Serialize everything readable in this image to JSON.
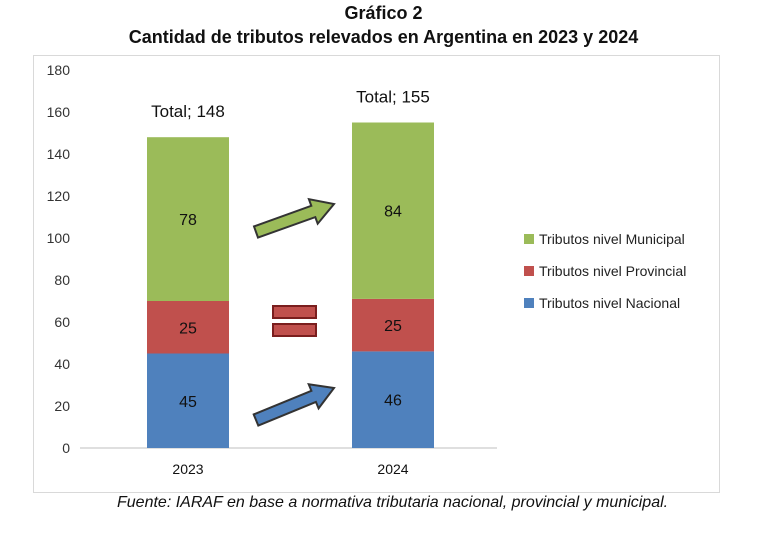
{
  "header": {
    "title": "Gráfico 2",
    "subtitle": "Cantidad de tributos relevados en Argentina en 2023 y 2024"
  },
  "chart_data": {
    "type": "bar",
    "stacked": true,
    "categories": [
      "2023",
      "2024"
    ],
    "series": [
      {
        "name": "Tributos nivel Nacional",
        "values": [
          45,
          46
        ],
        "color": "#4f81bd"
      },
      {
        "name": "Tributos nivel Provincial",
        "values": [
          25,
          25
        ],
        "color": "#c0504d"
      },
      {
        "name": "Tributos nivel Municipal",
        "values": [
          78,
          84
        ],
        "color": "#9bbb59"
      }
    ],
    "totals": [
      "Total; 148",
      "Total; 155"
    ],
    "ylim": [
      0,
      180
    ],
    "yticks": [
      0,
      20,
      40,
      60,
      80,
      100,
      120,
      140,
      160,
      180
    ],
    "grid": false,
    "legend_position": "right",
    "annotations": [
      {
        "type": "arrow",
        "level": "Municipal",
        "color": "#9bbb59"
      },
      {
        "type": "equals",
        "level": "Provincial",
        "color": "#c0504d"
      },
      {
        "type": "arrow",
        "level": "Nacional",
        "color": "#4f81bd"
      }
    ]
  },
  "footer": {
    "source": "Fuente: IARAF en base a normativa tributaria nacional, provincial y municipal."
  }
}
